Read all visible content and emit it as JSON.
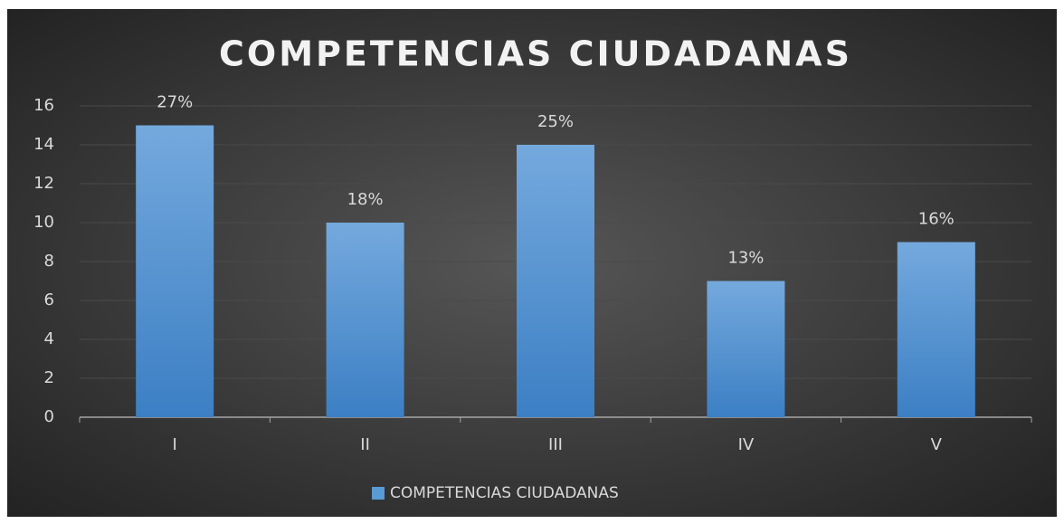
{
  "chart_data": {
    "type": "bar",
    "title": "COMPETENCIAS CIUDADANAS",
    "categories": [
      "I",
      "II",
      "III",
      "IV",
      "V"
    ],
    "series": [
      {
        "name": "COMPETENCIAS CIUDADANAS",
        "color": "#5b9bd5",
        "values": [
          15,
          10,
          14,
          7,
          9
        ]
      }
    ],
    "data_labels": [
      "27%",
      "18%",
      "25%",
      "13%",
      "16%"
    ],
    "ylim": [
      0,
      16
    ],
    "yticks": [
      0,
      2,
      4,
      6,
      8,
      10,
      12,
      14,
      16
    ],
    "grid": true,
    "legend": "bottom"
  }
}
